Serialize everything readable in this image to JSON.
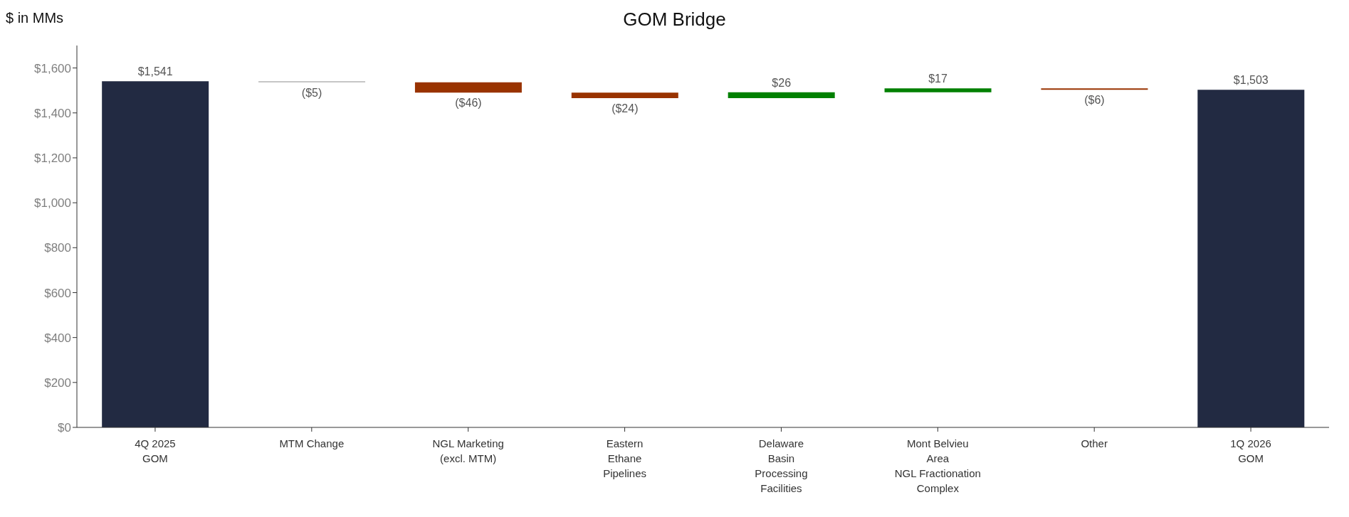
{
  "chart_data": {
    "type": "bar",
    "title": "GOM Bridge",
    "ylabel": "$ in MMs",
    "categories": [
      "4Q 2025\nGOM",
      "MTM Change",
      "NGL Marketing\n(excl. MTM)",
      "Eastern\nEthane\nPipelines",
      "Delaware\nBasin\nProcessing\nFacilities",
      "Mont Belvieu\nArea\nNGL Fractionation\nComplex",
      "Other",
      "1Q 2026\nGOM"
    ],
    "values": [
      1541,
      -5,
      -46,
      -24,
      26,
      17,
      -6,
      1503
    ],
    "base": [
      0,
      1541,
      1536,
      1490,
      1466,
      1492,
      1509,
      0
    ],
    "colors": [
      "#222a42",
      "#b3b3b3",
      "#993300",
      "#993300",
      "#008000",
      "#008000",
      "#993300",
      "#222a42"
    ],
    "value_labels": [
      "$1,541",
      "($5)",
      "($46)",
      "($24)",
      "$26",
      "$17",
      "($6)",
      "$1,503"
    ],
    "ylim": [
      0,
      1700
    ],
    "yticks": [
      {
        "value": 0,
        "label": "$0"
      },
      {
        "value": 200,
        "label": "$200"
      },
      {
        "value": 400,
        "label": "$400"
      },
      {
        "value": 600,
        "label": "$600"
      },
      {
        "value": 800,
        "label": "$800"
      },
      {
        "value": 1000,
        "label": "$1,000"
      },
      {
        "value": 1200,
        "label": "$1,200"
      },
      {
        "value": 1400,
        "label": "$1,400"
      },
      {
        "value": 1600,
        "label": "$1,600"
      }
    ],
    "grid": false,
    "legend": false
  }
}
